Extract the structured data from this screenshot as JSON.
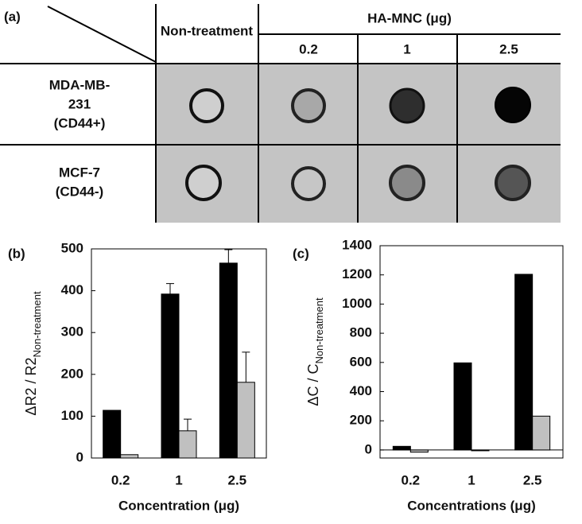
{
  "panel_a": {
    "label": "(a)",
    "header": {
      "control": "Non-treatment",
      "group": "HA-MNC (μg)",
      "doses": [
        "0.2",
        "1",
        "2.5"
      ]
    },
    "rows": [
      {
        "lines": [
          "MDA-MB-",
          "231",
          "(CD44+)"
        ]
      },
      {
        "lines": [
          "MCF-7",
          "(CD44-)"
        ]
      }
    ]
  },
  "chart_data": [
    {
      "type": "bar",
      "panel_label": "(b)",
      "xlabel": "Concentration (μg)",
      "ylabel": "ΔR2 / R2",
      "ylabel_subscript": "Non-treatment",
      "categories": [
        "0.2",
        "1",
        "2.5"
      ],
      "series": [
        {
          "color": "#000000",
          "values": [
            114,
            392,
            466
          ],
          "errors": [
            null,
            25,
            32
          ]
        },
        {
          "color": "#c0c0c0",
          "values": [
            8,
            65,
            181
          ],
          "errors": [
            null,
            28,
            72
          ]
        }
      ],
      "ylim": [
        0,
        500
      ],
      "yticks": [
        0,
        100,
        200,
        300,
        400,
        500
      ]
    },
    {
      "type": "bar",
      "panel_label": "(c)",
      "xlabel": "Concentrations (μg)",
      "ylabel": "ΔC / C",
      "ylabel_subscript": "Non-treatment",
      "categories": [
        "0.2",
        "1",
        "2.5"
      ],
      "series": [
        {
          "color": "#000000",
          "values": [
            25,
            597,
            1204
          ]
        },
        {
          "color": "#c0c0c0",
          "values": [
            -15,
            -3,
            232
          ]
        }
      ],
      "ylim": [
        -55,
        1400
      ],
      "yticks": [
        0,
        200,
        400,
        600,
        800,
        1000,
        1200,
        1400
      ]
    }
  ]
}
